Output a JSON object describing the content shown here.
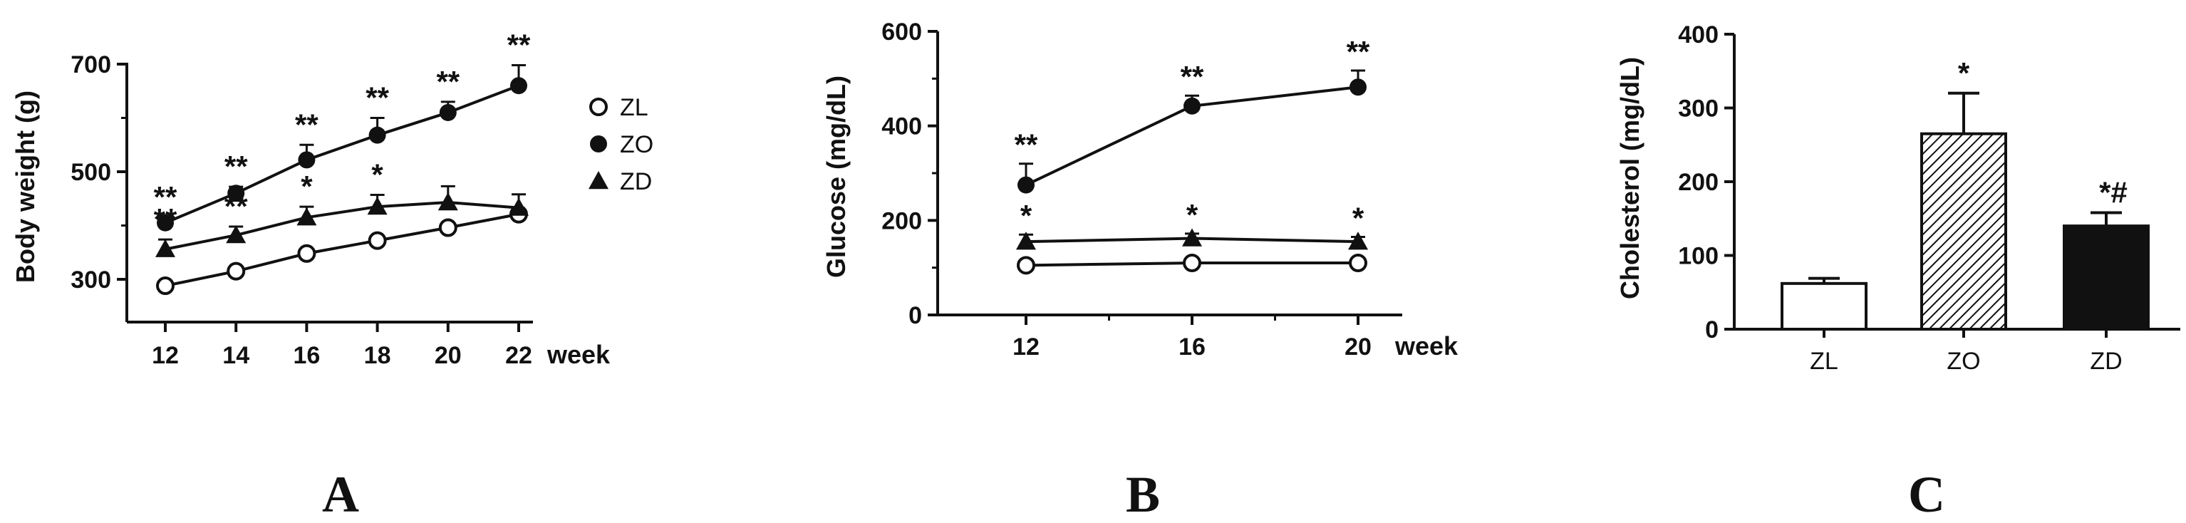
{
  "chart_data": [
    {
      "panel": "A",
      "type": "line",
      "ylabel": "Body weight (g)",
      "xunit": "week",
      "x": [
        12,
        14,
        16,
        18,
        20,
        22
      ],
      "x_ticks": [
        "12",
        "14",
        "16",
        "18",
        "20",
        "22"
      ],
      "y_ticks": [
        "300",
        "500",
        "700"
      ],
      "ylim": [
        200,
        720
      ],
      "series": [
        {
          "name": "ZL",
          "marker": "open-circle",
          "values": [
            288,
            315,
            348,
            372,
            396,
            421
          ],
          "errors": [
            0,
            0,
            0,
            0,
            0,
            0
          ],
          "sig": [
            "",
            "",
            "",
            "",
            "",
            ""
          ]
        },
        {
          "name": "ZO",
          "marker": "filled-circle",
          "values": [
            405,
            460,
            522,
            568,
            610,
            660
          ],
          "errors": [
            10,
            12,
            28,
            32,
            20,
            38
          ],
          "sig": [
            "**",
            "**",
            "**",
            "**",
            "**",
            "**"
          ]
        },
        {
          "name": "ZD",
          "marker": "filled-triangle",
          "values": [
            356,
            382,
            415,
            435,
            443,
            433
          ],
          "errors": [
            18,
            16,
            20,
            22,
            30,
            25
          ],
          "sig": [
            "**",
            "**",
            "*",
            "*",
            "",
            ""
          ]
        }
      ],
      "legend_position": "right"
    },
    {
      "panel": "B",
      "type": "line",
      "ylabel": "Glucose (mg/dL)",
      "xunit": "week",
      "x": [
        12,
        16,
        20
      ],
      "x_ticks": [
        "12",
        "16",
        "20"
      ],
      "y_ticks": [
        "0",
        "200",
        "400",
        "600"
      ],
      "ylim": [
        0,
        600
      ],
      "series": [
        {
          "name": "ZL",
          "marker": "open-circle",
          "values": [
            105,
            110,
            110
          ],
          "errors": [
            0,
            0,
            0
          ],
          "sig": [
            "",
            "",
            ""
          ]
        },
        {
          "name": "ZO",
          "marker": "filled-circle",
          "values": [
            275,
            442,
            482
          ],
          "errors": [
            45,
            22,
            35
          ],
          "sig": [
            "**",
            "**",
            "**"
          ]
        },
        {
          "name": "ZD",
          "marker": "filled-triangle",
          "values": [
            155,
            162,
            155
          ],
          "errors": [
            15,
            10,
            10
          ],
          "sig": [
            "*",
            "*",
            "*"
          ]
        }
      ]
    },
    {
      "panel": "C",
      "type": "bar",
      "ylabel": "Cholesterol (mg/dL)",
      "categories": [
        "ZL",
        "ZO",
        "ZD"
      ],
      "values": [
        62,
        265,
        140
      ],
      "errors": [
        7,
        55,
        18
      ],
      "fills": [
        "white",
        "hatched",
        "black"
      ],
      "sig": [
        "",
        "*",
        "*#"
      ],
      "y_ticks": [
        "0",
        "100",
        "200",
        "300",
        "400"
      ],
      "ylim": [
        0,
        400
      ]
    }
  ],
  "panel_labels": [
    "A",
    "B",
    "C"
  ],
  "colors": {
    "ink": "#111111",
    "background": "#ffffff"
  }
}
